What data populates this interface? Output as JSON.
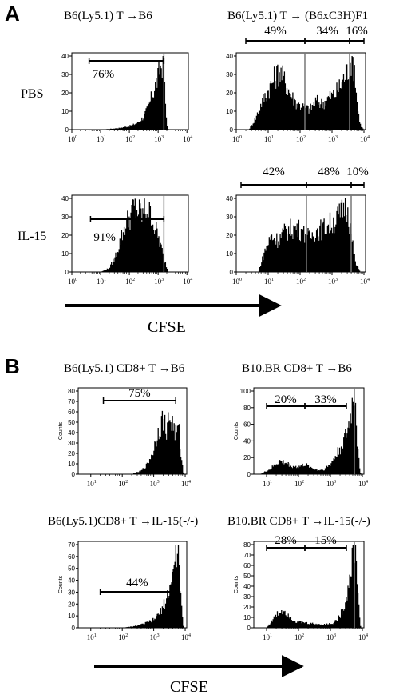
{
  "chart_data": {
    "type": "histogram-figure",
    "panels": [
      {
        "letter": "A",
        "row_labels": [
          "PBS",
          "IL-15"
        ],
        "col_titles": [
          "B6(Ly5.1) T →B6",
          "B6(Ly5.1) T → (B6xC3H)F1"
        ],
        "x_label": "CFSE",
        "plots": [
          {
            "id": "A-PBS-B6",
            "ymax": 40,
            "yticks": [
              "0",
              "10",
              "20",
              "30",
              "40"
            ],
            "ylabel": "",
            "gates": [
              {
                "label": "76%",
                "start": 0.6,
                "end": 3.2
              }
            ],
            "markers": [
              3.2
            ],
            "density": [
              [
                0.7,
                0
              ],
              [
                1.0,
                0
              ],
              [
                1.3,
                0.01
              ],
              [
                1.6,
                0.02
              ],
              [
                1.9,
                0.04
              ],
              [
                2.1,
                0.06
              ],
              [
                2.3,
                0.1
              ],
              [
                2.5,
                0.18
              ],
              [
                2.65,
                0.3
              ],
              [
                2.8,
                0.48
              ],
              [
                2.9,
                0.62
              ],
              [
                3.0,
                0.72
              ],
              [
                3.05,
                0.85
              ],
              [
                3.1,
                0.9
              ],
              [
                3.15,
                0.95
              ],
              [
                3.2,
                0.8
              ],
              [
                3.25,
                0.4
              ],
              [
                3.3,
                0.1
              ],
              [
                3.35,
                0
              ]
            ]
          },
          {
            "id": "A-PBS-F1",
            "ymax": 40,
            "yticks": [
              "0",
              "10",
              "20",
              "30",
              "40"
            ],
            "ylabel": "",
            "gates": [
              {
                "label": "49%",
                "start": 0.3,
                "end": 2.15
              },
              {
                "label": "34%",
                "start": 2.15,
                "end": 3.55
              },
              {
                "label": "16%",
                "start": 3.55,
                "end": 4.0
              }
            ],
            "markers": [
              2.15,
              3.55
            ],
            "density": [
              [
                0.4,
                0
              ],
              [
                0.6,
                0.15
              ],
              [
                0.8,
                0.38
              ],
              [
                1.0,
                0.55
              ],
              [
                1.2,
                0.72
              ],
              [
                1.35,
                0.82
              ],
              [
                1.5,
                0.7
              ],
              [
                1.7,
                0.5
              ],
              [
                1.9,
                0.36
              ],
              [
                2.1,
                0.32
              ],
              [
                2.3,
                0.28
              ],
              [
                2.5,
                0.4
              ],
              [
                2.7,
                0.36
              ],
              [
                2.9,
                0.45
              ],
              [
                3.1,
                0.5
              ],
              [
                3.3,
                0.65
              ],
              [
                3.5,
                0.85
              ],
              [
                3.6,
                0.98
              ],
              [
                3.7,
                0.9
              ],
              [
                3.8,
                0.3
              ],
              [
                3.9,
                0.05
              ],
              [
                4.0,
                0
              ]
            ]
          },
          {
            "id": "A-IL15-B6",
            "ymax": 40,
            "yticks": [
              "0",
              "10",
              "20",
              "30",
              "40"
            ],
            "ylabel": "",
            "gates": [
              {
                "label": "91%",
                "start": 0.65,
                "end": 3.2
              }
            ],
            "markers": [
              3.2
            ],
            "density": [
              [
                1.0,
                0
              ],
              [
                1.3,
                0.05
              ],
              [
                1.5,
                0.2
              ],
              [
                1.7,
                0.45
              ],
              [
                1.85,
                0.65
              ],
              [
                2.0,
                0.75
              ],
              [
                2.15,
                0.9
              ],
              [
                2.3,
                0.85
              ],
              [
                2.45,
                0.8
              ],
              [
                2.6,
                0.9
              ],
              [
                2.75,
                0.78
              ],
              [
                2.9,
                0.6
              ],
              [
                3.0,
                0.5
              ],
              [
                3.1,
                0.35
              ],
              [
                3.2,
                0.2
              ],
              [
                3.35,
                0
              ]
            ]
          },
          {
            "id": "A-IL15-F1",
            "ymax": 40,
            "yticks": [
              "0",
              "10",
              "20",
              "30",
              "40"
            ],
            "ylabel": "",
            "gates": [
              {
                "label": "42%",
                "start": 0.15,
                "end": 2.2
              },
              {
                "label": "48%",
                "start": 2.2,
                "end": 3.6
              },
              {
                "label": "10%",
                "start": 3.6,
                "end": 4.0
              }
            ],
            "markers": [
              2.2,
              3.6
            ],
            "density": [
              [
                0.7,
                0
              ],
              [
                0.9,
                0.3
              ],
              [
                1.1,
                0.5
              ],
              [
                1.3,
                0.45
              ],
              [
                1.5,
                0.55
              ],
              [
                1.7,
                0.6
              ],
              [
                1.9,
                0.62
              ],
              [
                2.1,
                0.55
              ],
              [
                2.3,
                0.48
              ],
              [
                2.5,
                0.58
              ],
              [
                2.7,
                0.6
              ],
              [
                2.9,
                0.66
              ],
              [
                3.1,
                0.72
              ],
              [
                3.3,
                0.82
              ],
              [
                3.4,
                0.98
              ],
              [
                3.5,
                0.9
              ],
              [
                3.6,
                0.5
              ],
              [
                3.75,
                0.1
              ],
              [
                3.9,
                0
              ]
            ]
          }
        ]
      },
      {
        "letter": "B",
        "col_titles": [
          "B6(Ly5.1) CD8+ T →B6",
          "B10.BR CD8+ T →B6"
        ],
        "col_titles_bottom": [
          "B6(Ly5.1)CD8+ T →IL-15(-/-)",
          "B10.BR CD8+ T →IL-15(-/-)"
        ],
        "x_label": "CFSE",
        "plots": [
          {
            "id": "B-B6-B6",
            "ymax": 80,
            "yticks": [
              "0",
              "10",
              "20",
              "30",
              "40",
              "50",
              "60",
              "70",
              "80"
            ],
            "ylabel": "Counts",
            "gates": [
              {
                "label": "75%",
                "start": 1.4,
                "end": 3.7
              }
            ],
            "markers": [],
            "density": [
              [
                2.3,
                0
              ],
              [
                2.6,
                0.04
              ],
              [
                2.8,
                0.12
              ],
              [
                3.0,
                0.3
              ],
              [
                3.15,
                0.55
              ],
              [
                3.3,
                0.68
              ],
              [
                3.4,
                0.55
              ],
              [
                3.5,
                0.7
              ],
              [
                3.6,
                0.62
              ],
              [
                3.7,
                0.5
              ],
              [
                3.8,
                0.55
              ],
              [
                3.85,
                0.3
              ],
              [
                3.95,
                0
              ]
            ]
          },
          {
            "id": "B-BR-B6",
            "ymax": 100,
            "yticks": [
              "0",
              "20",
              "40",
              "60",
              "80",
              "100"
            ],
            "ylabel": "Counts",
            "gates": [
              {
                "label": "20%",
                "start": 1.0,
                "end": 2.2
              },
              {
                "label": "33%",
                "start": 2.2,
                "end": 3.5
              }
            ],
            "markers": [
              3.75
            ],
            "density": [
              [
                0.8,
                0
              ],
              [
                1.1,
                0.06
              ],
              [
                1.4,
                0.16
              ],
              [
                1.6,
                0.14
              ],
              [
                1.8,
                0.1
              ],
              [
                2.0,
                0.09
              ],
              [
                2.2,
                0.12
              ],
              [
                2.4,
                0.08
              ],
              [
                2.6,
                0.05
              ],
              [
                2.8,
                0.06
              ],
              [
                3.0,
                0.12
              ],
              [
                3.2,
                0.25
              ],
              [
                3.4,
                0.38
              ],
              [
                3.55,
                0.55
              ],
              [
                3.65,
                0.75
              ],
              [
                3.72,
                0.98
              ],
              [
                3.78,
                1.0
              ],
              [
                3.85,
                0.3
              ],
              [
                3.95,
                0
              ]
            ]
          },
          {
            "id": "B-B6-KO",
            "ymax": 70,
            "yticks": [
              "0",
              "10",
              "20",
              "30",
              "40",
              "50",
              "60",
              "70"
            ],
            "ylabel": "Counts",
            "gates": [
              {
                "label": "44%",
                "start": 1.3,
                "end": 3.65
              }
            ],
            "markers": [],
            "density": [
              [
                2.0,
                0
              ],
              [
                2.4,
                0.02
              ],
              [
                2.7,
                0.05
              ],
              [
                3.0,
                0.1
              ],
              [
                3.2,
                0.18
              ],
              [
                3.4,
                0.35
              ],
              [
                3.55,
                0.55
              ],
              [
                3.65,
                0.75
              ],
              [
                3.72,
                0.95
              ],
              [
                3.8,
                0.9
              ],
              [
                3.87,
                0.3
              ],
              [
                3.95,
                0
              ]
            ]
          },
          {
            "id": "B-BR-KO",
            "ymax": 80,
            "yticks": [
              "0",
              "10",
              "20",
              "30",
              "40",
              "50",
              "60",
              "70",
              "80"
            ],
            "ylabel": "Counts",
            "gates": [
              {
                "label": "28%",
                "start": 1.0,
                "end": 2.2
              },
              {
                "label": "15%",
                "start": 2.2,
                "end": 3.5
              }
            ],
            "markers": [
              3.75
            ],
            "density": [
              [
                1.0,
                0
              ],
              [
                1.2,
                0.1
              ],
              [
                1.4,
                0.2
              ],
              [
                1.55,
                0.22
              ],
              [
                1.7,
                0.15
              ],
              [
                1.9,
                0.08
              ],
              [
                2.2,
                0.06
              ],
              [
                2.5,
                0.05
              ],
              [
                2.8,
                0.04
              ],
              [
                3.1,
                0.06
              ],
              [
                3.3,
                0.14
              ],
              [
                3.5,
                0.35
              ],
              [
                3.62,
                0.7
              ],
              [
                3.72,
                1.0
              ],
              [
                3.8,
                0.95
              ],
              [
                3.88,
                0.3
              ],
              [
                3.95,
                0
              ]
            ]
          }
        ]
      }
    ],
    "x_axis": {
      "scale": "log",
      "range": [
        0,
        4
      ],
      "tick_labels_A": [
        "10",
        "0",
        "10",
        "1",
        "10",
        "2",
        "10",
        "3",
        "10",
        "4"
      ],
      "tick_labels_B": [
        "10",
        "1",
        "10",
        "2",
        "10",
        "3",
        "10",
        "4"
      ]
    }
  }
}
